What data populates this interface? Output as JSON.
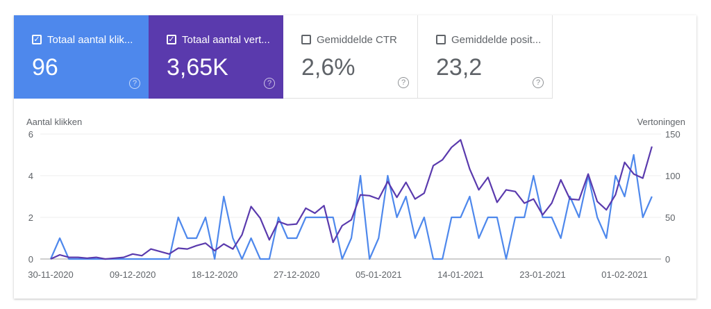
{
  "metrics": [
    {
      "label": "Totaal aantal klik...",
      "value": "96",
      "checked": true,
      "color": "#4e88ec"
    },
    {
      "label": "Totaal aantal vert...",
      "value": "3,65K",
      "checked": true,
      "color": "#5a3aad"
    },
    {
      "label": "Gemiddelde CTR",
      "value": "2,6%",
      "checked": false
    },
    {
      "label": "Gemiddelde posit...",
      "value": "23,2",
      "checked": false
    }
  ],
  "icons": {
    "checkbox": "checkbox-icon",
    "help": "help-circle-icon"
  },
  "chart_data": {
    "type": "line",
    "ylabel_left": "Aantal klikken",
    "ylabel_right": "Vertoningen",
    "ylim_left": [
      0,
      6
    ],
    "yticks_left": [
      "0",
      "2",
      "4",
      "6"
    ],
    "ylim_right": [
      0,
      150
    ],
    "yticks_right": [
      "0",
      "50",
      "100",
      "150"
    ],
    "x_start": "30-11-2020",
    "x_end": "04-02-2021",
    "xtick_labels": [
      "30-11-2020",
      "09-12-2020",
      "18-12-2020",
      "27-12-2020",
      "05-01-2021",
      "14-01-2021",
      "23-01-2021",
      "01-02-2021"
    ],
    "grid": true,
    "series": [
      {
        "axis": "left",
        "color": "#4e88ec",
        "values": [
          0,
          1,
          0,
          0,
          0,
          0,
          0,
          0,
          0,
          0,
          0,
          0,
          0,
          0,
          2,
          1,
          1,
          2,
          0,
          3,
          1,
          0,
          1,
          0,
          0,
          2,
          1,
          1,
          2,
          2,
          2,
          2,
          0,
          1,
          4,
          0,
          1,
          4,
          2,
          3,
          1,
          2,
          0,
          0,
          2,
          2,
          3,
          1,
          2,
          2,
          0,
          2,
          2,
          4,
          2,
          2,
          1,
          3,
          2,
          4,
          2,
          1,
          4,
          3,
          5,
          2,
          3
        ]
      },
      {
        "axis": "right",
        "color": "#5a3aad",
        "values": [
          0,
          5,
          2,
          2,
          1,
          2,
          0,
          1,
          2,
          6,
          4,
          12,
          9,
          6,
          13,
          12,
          16,
          19,
          10,
          18,
          12,
          29,
          63,
          49,
          23,
          45,
          41,
          42,
          61,
          55,
          64,
          20,
          40,
          47,
          77,
          76,
          72,
          93,
          74,
          92,
          72,
          79,
          112,
          119,
          134,
          143,
          108,
          83,
          98,
          68,
          83,
          81,
          67,
          72,
          53,
          67,
          95,
          72,
          71,
          102,
          69,
          59,
          77,
          116,
          102,
          97,
          135
        ]
      }
    ]
  }
}
